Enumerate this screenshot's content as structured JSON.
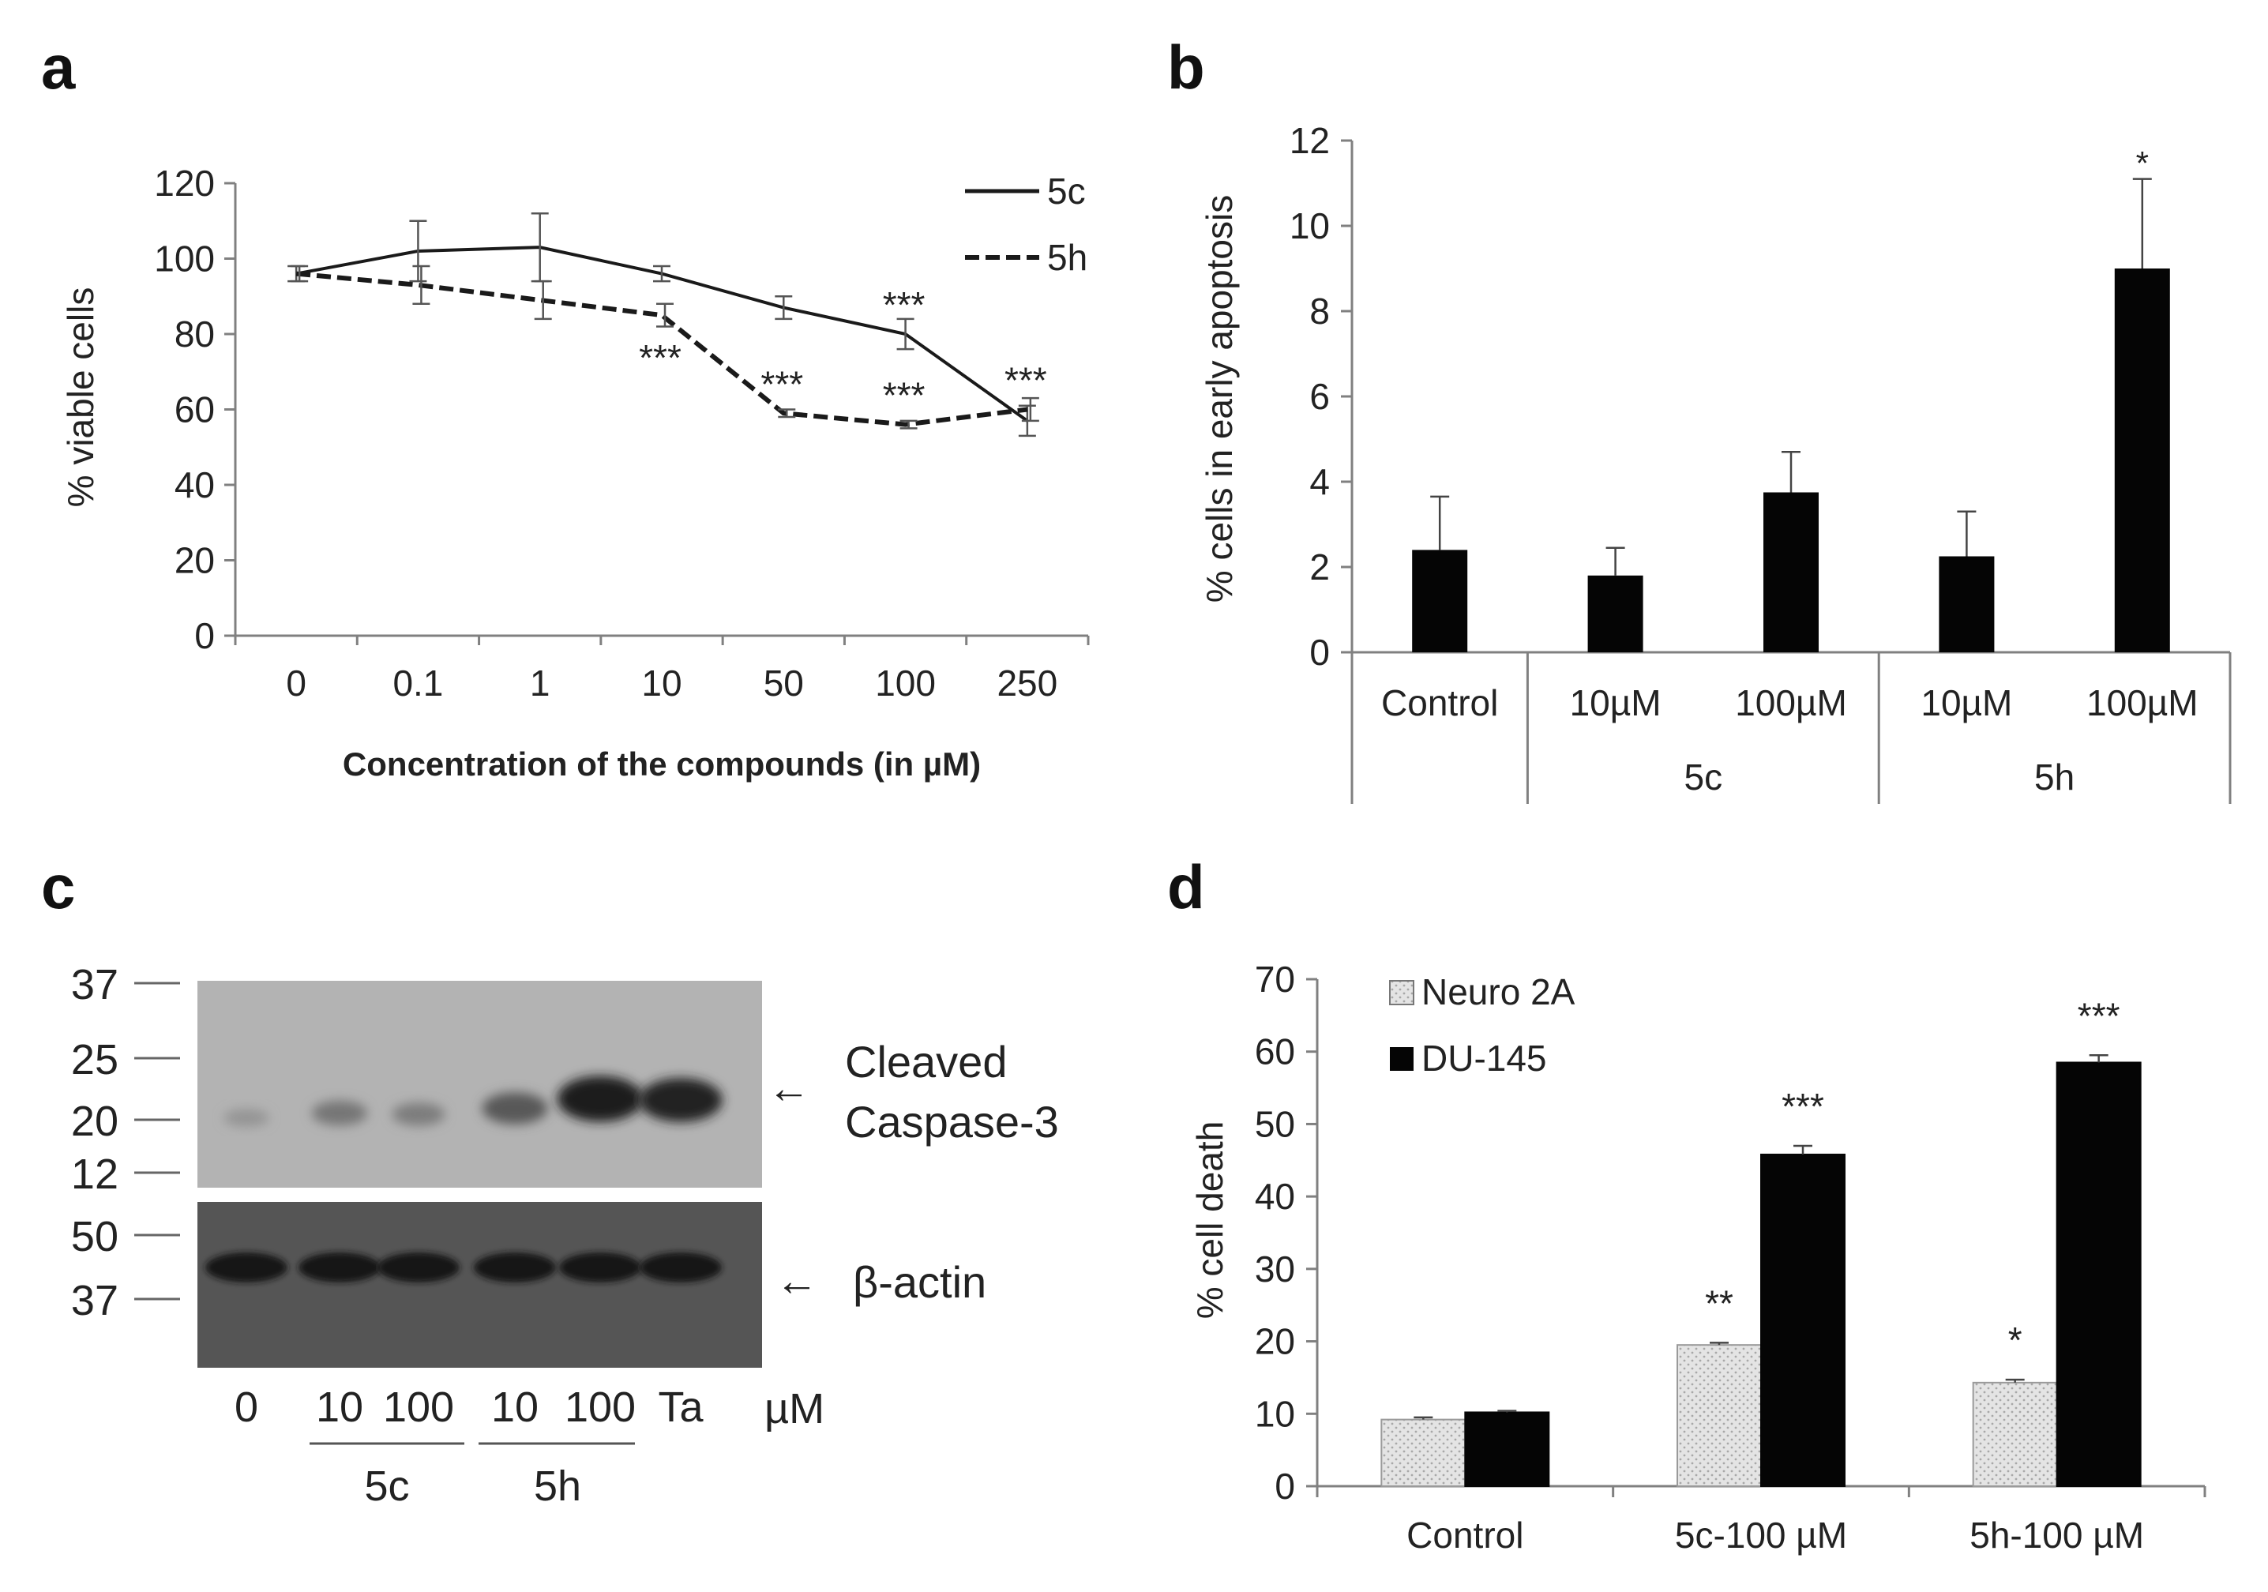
{
  "panels": {
    "a": "a",
    "b": "b",
    "c": "c",
    "d": "d"
  },
  "colors": {
    "ink": "#1a1a1a",
    "axis": "#808080",
    "bar": "#050505",
    "neuro_fill": "#e4e4e4",
    "blot_top_bg": "#b3b3b3",
    "blot_bottom_bg": "#555555"
  },
  "chart_data": [
    {
      "panel": "a",
      "type": "line",
      "title": "",
      "xlabel": "Concentration of the compounds (in µM)",
      "ylabel": "% viable cells",
      "categories": [
        "0",
        "0.1",
        "1",
        "10",
        "50",
        "100",
        "250"
      ],
      "ylim": [
        0,
        120
      ],
      "yticks": [
        0,
        20,
        40,
        60,
        80,
        100,
        120
      ],
      "series": [
        {
          "name": "5c",
          "style": "solid",
          "values": [
            96,
            102,
            103,
            96,
            87,
            80,
            57
          ],
          "errors": [
            2,
            8,
            9,
            2,
            3,
            4,
            4
          ]
        },
        {
          "name": "5h",
          "style": "dashed",
          "values": [
            96,
            93,
            89,
            85,
            59,
            56,
            60
          ],
          "errors": [
            2,
            5,
            5,
            3,
            1,
            1,
            3
          ]
        }
      ],
      "annotations": [
        {
          "category": "10",
          "value": 75,
          "text": "***"
        },
        {
          "category": "50",
          "value": 68,
          "text": "***"
        },
        {
          "category": "100",
          "value": 89,
          "text": "***"
        },
        {
          "category": "100",
          "value": 65,
          "text": "***"
        },
        {
          "category": "250",
          "value": 69,
          "text": "***"
        }
      ],
      "legend_position": "top-right",
      "grid": false
    },
    {
      "panel": "b",
      "type": "bar",
      "title": "",
      "xlabel": "",
      "ylabel": "% cells in early apoptosis",
      "categories": [
        "Control",
        "10µM",
        "100µM",
        "10µM",
        "100µM"
      ],
      "groups": [
        {
          "label": "",
          "span": [
            0
          ]
        },
        {
          "label": "5c",
          "span": [
            1,
            2
          ]
        },
        {
          "label": "5h",
          "span": [
            3,
            4
          ]
        }
      ],
      "values": [
        2.4,
        1.8,
        3.75,
        2.25,
        9.0
      ],
      "errors": [
        1.25,
        0.65,
        0.95,
        1.05,
        2.1
      ],
      "ylim": [
        0,
        12
      ],
      "yticks": [
        0,
        2,
        4,
        6,
        8,
        10,
        12
      ],
      "annotations": [
        {
          "index": 4,
          "value": 11.5,
          "text": "*"
        }
      ],
      "grid": false
    },
    {
      "panel": "d",
      "type": "bar",
      "title": "",
      "xlabel": "",
      "ylabel": "% cell death",
      "categories": [
        "Control",
        "5c-100 µM",
        "5h-100 µM"
      ],
      "series": [
        {
          "name": "Neuro 2A",
          "values": [
            9.2,
            19.5,
            14.3
          ],
          "errors": [
            0.3,
            0.3,
            0.4
          ],
          "annotations": [
            "",
            "**",
            "*"
          ]
        },
        {
          "name": "DU-145",
          "values": [
            10.2,
            45.8,
            58.5
          ],
          "errors": [
            0.2,
            1.2,
            1.0
          ],
          "annotations": [
            "",
            "***",
            "***"
          ]
        }
      ],
      "ylim": [
        0,
        70
      ],
      "yticks": [
        0,
        10,
        20,
        30,
        40,
        50,
        60,
        70
      ],
      "legend_position": "top-left",
      "grid": false
    }
  ],
  "western_blot": {
    "markers_top": [
      "37",
      "25",
      "20",
      "12"
    ],
    "markers_bottom": [
      "50",
      "37"
    ],
    "band_top_label": [
      "Cleaved",
      "Caspase-3"
    ],
    "band_bottom_label": "β-actin",
    "lanes": [
      "0",
      "10",
      "100",
      "10",
      "100",
      "Ta"
    ],
    "unit": "µM",
    "groups": [
      "5c",
      "5h"
    ],
    "caspase_intensity": [
      0.15,
      0.35,
      0.3,
      0.55,
      0.95,
      0.9
    ],
    "actin_intensity": [
      0.9,
      0.9,
      0.85,
      0.9,
      0.85,
      0.85
    ],
    "arrow": "←"
  }
}
